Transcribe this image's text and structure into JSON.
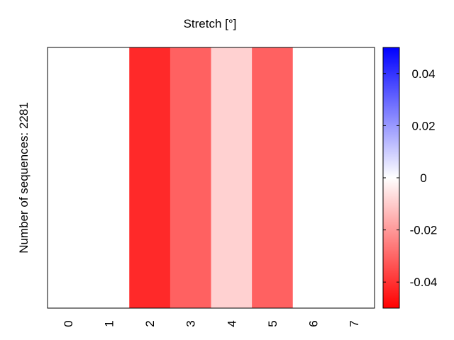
{
  "chart_data": {
    "type": "heatmap",
    "title": "Stretch [°]",
    "ylabel": "Number of sequences: 2281",
    "xlabel": "",
    "categories": [
      "0",
      "1",
      "2",
      "3",
      "4",
      "5",
      "6",
      "7"
    ],
    "values": [
      0.0,
      0.0,
      -0.042,
      -0.031,
      -0.009,
      -0.031,
      0.0,
      0.0
    ],
    "colorbar": {
      "range": [
        -0.05,
        0.05
      ],
      "ticks": [
        "0.04",
        "0.02",
        "0",
        "-0.02",
        "-0.04"
      ],
      "tick_values": [
        0.04,
        0.02,
        0,
        -0.02,
        -0.04
      ],
      "colors": {
        "low": "#ff0000",
        "mid": "#ffffff",
        "high": "#0000ff"
      }
    },
    "grid": false
  }
}
